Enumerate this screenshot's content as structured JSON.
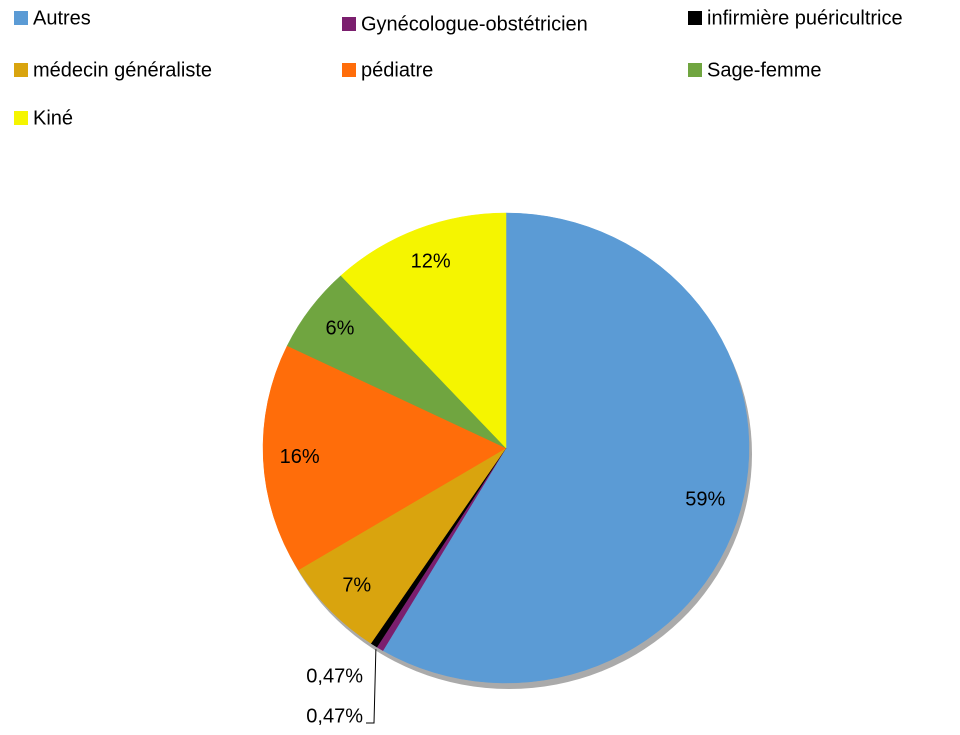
{
  "chart_data": {
    "type": "pie",
    "categories": [
      "Autres",
      "Gynécologue-obstétricien",
      "infirmière puéricultrice",
      "médecin généraliste",
      "pédiatre",
      "Sage-femme",
      "Kiné"
    ],
    "values": [
      59,
      0.47,
      0.47,
      7,
      16,
      6,
      12
    ],
    "value_labels": [
      "59%",
      "0,47%",
      "0,47%",
      "7%",
      "16%",
      "6%",
      "12%"
    ],
    "colors": [
      "#5b9bd5",
      "#7b1f6e",
      "#000000",
      "#d9a40e",
      "#ff6d0a",
      "#70a540",
      "#f5f500"
    ]
  }
}
